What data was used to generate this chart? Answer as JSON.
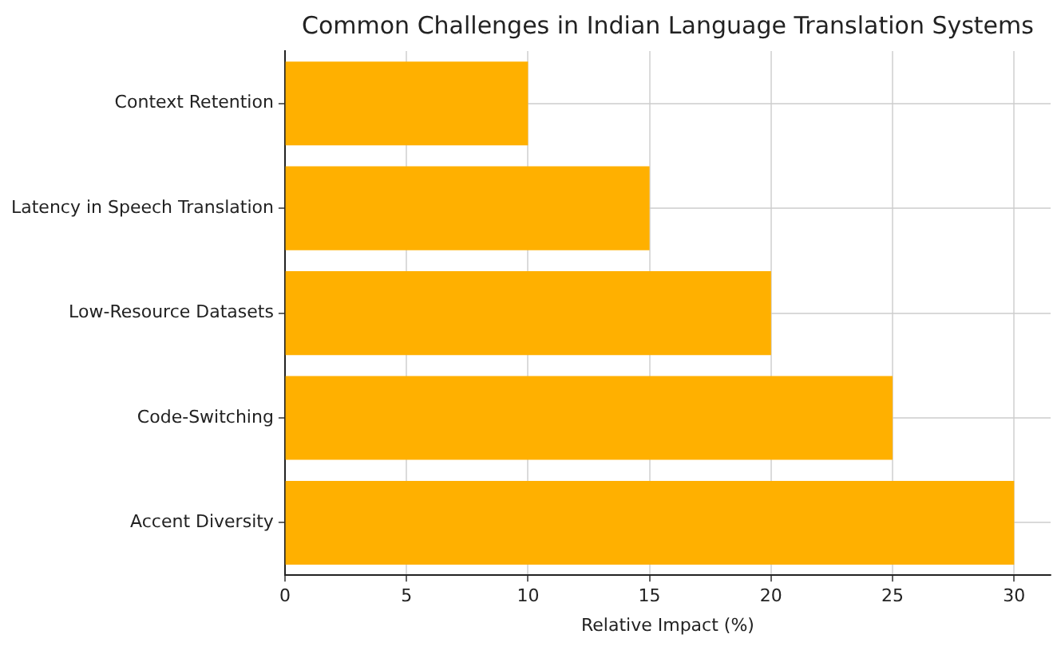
{
  "chart_data": {
    "type": "bar",
    "orientation": "horizontal",
    "title": "Common Challenges in Indian Language Translation Systems",
    "xlabel": "Relative Impact (%)",
    "categories": [
      "Context Retention",
      "Latency in Speech Translation",
      "Low-Resource Datasets",
      "Code-Switching",
      "Accent Diversity"
    ],
    "values": [
      10,
      15,
      20,
      25,
      30
    ],
    "color": "#ffb000",
    "xlim": [
      0,
      31.5
    ],
    "xticks": [
      0,
      5,
      10,
      15,
      20,
      25,
      30
    ],
    "grid": true,
    "legend": false
  }
}
